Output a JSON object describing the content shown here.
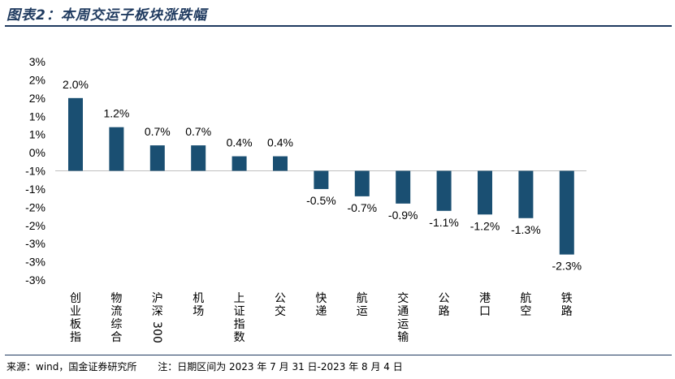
{
  "title": "图表2：本周交运子板块涨跌幅",
  "footer": {
    "source": "来源：wind，国金证券研究所",
    "note": "注：日期区间为 2023 年 7 月 31 日-2023 年 8 月 4 日"
  },
  "colors": {
    "bar": "#1a4f72",
    "title": "#1f3a5f"
  },
  "chart_data": {
    "type": "bar",
    "title": "",
    "xlabel": "",
    "ylabel": "",
    "ylim": [
      -3,
      3
    ],
    "yticks": [
      "3%",
      "2%",
      "2%",
      "1%",
      "1%",
      "0%",
      "-1%",
      "-1%",
      "-2%",
      "-2%",
      "-3%",
      "-3%",
      "-3%"
    ],
    "categories": [
      "创业板指",
      "物流综合",
      "沪深300",
      "机场",
      "上证指数",
      "公交",
      "快递",
      "航运",
      "交通运输",
      "公路",
      "港口",
      "航空",
      "铁路"
    ],
    "values": [
      2.0,
      1.2,
      0.7,
      0.7,
      0.4,
      0.4,
      -0.5,
      -0.7,
      -0.9,
      -1.1,
      -1.2,
      -1.3,
      -2.3
    ],
    "data_labels": [
      "2.0%",
      "1.2%",
      "0.7%",
      "0.7%",
      "0.4%",
      "0.4%",
      "-0.5%",
      "-0.7%",
      "-0.9%",
      "-1.1%",
      "-1.2%",
      "-1.3%",
      "-2.3%"
    ],
    "grid": false,
    "legend": "none"
  }
}
